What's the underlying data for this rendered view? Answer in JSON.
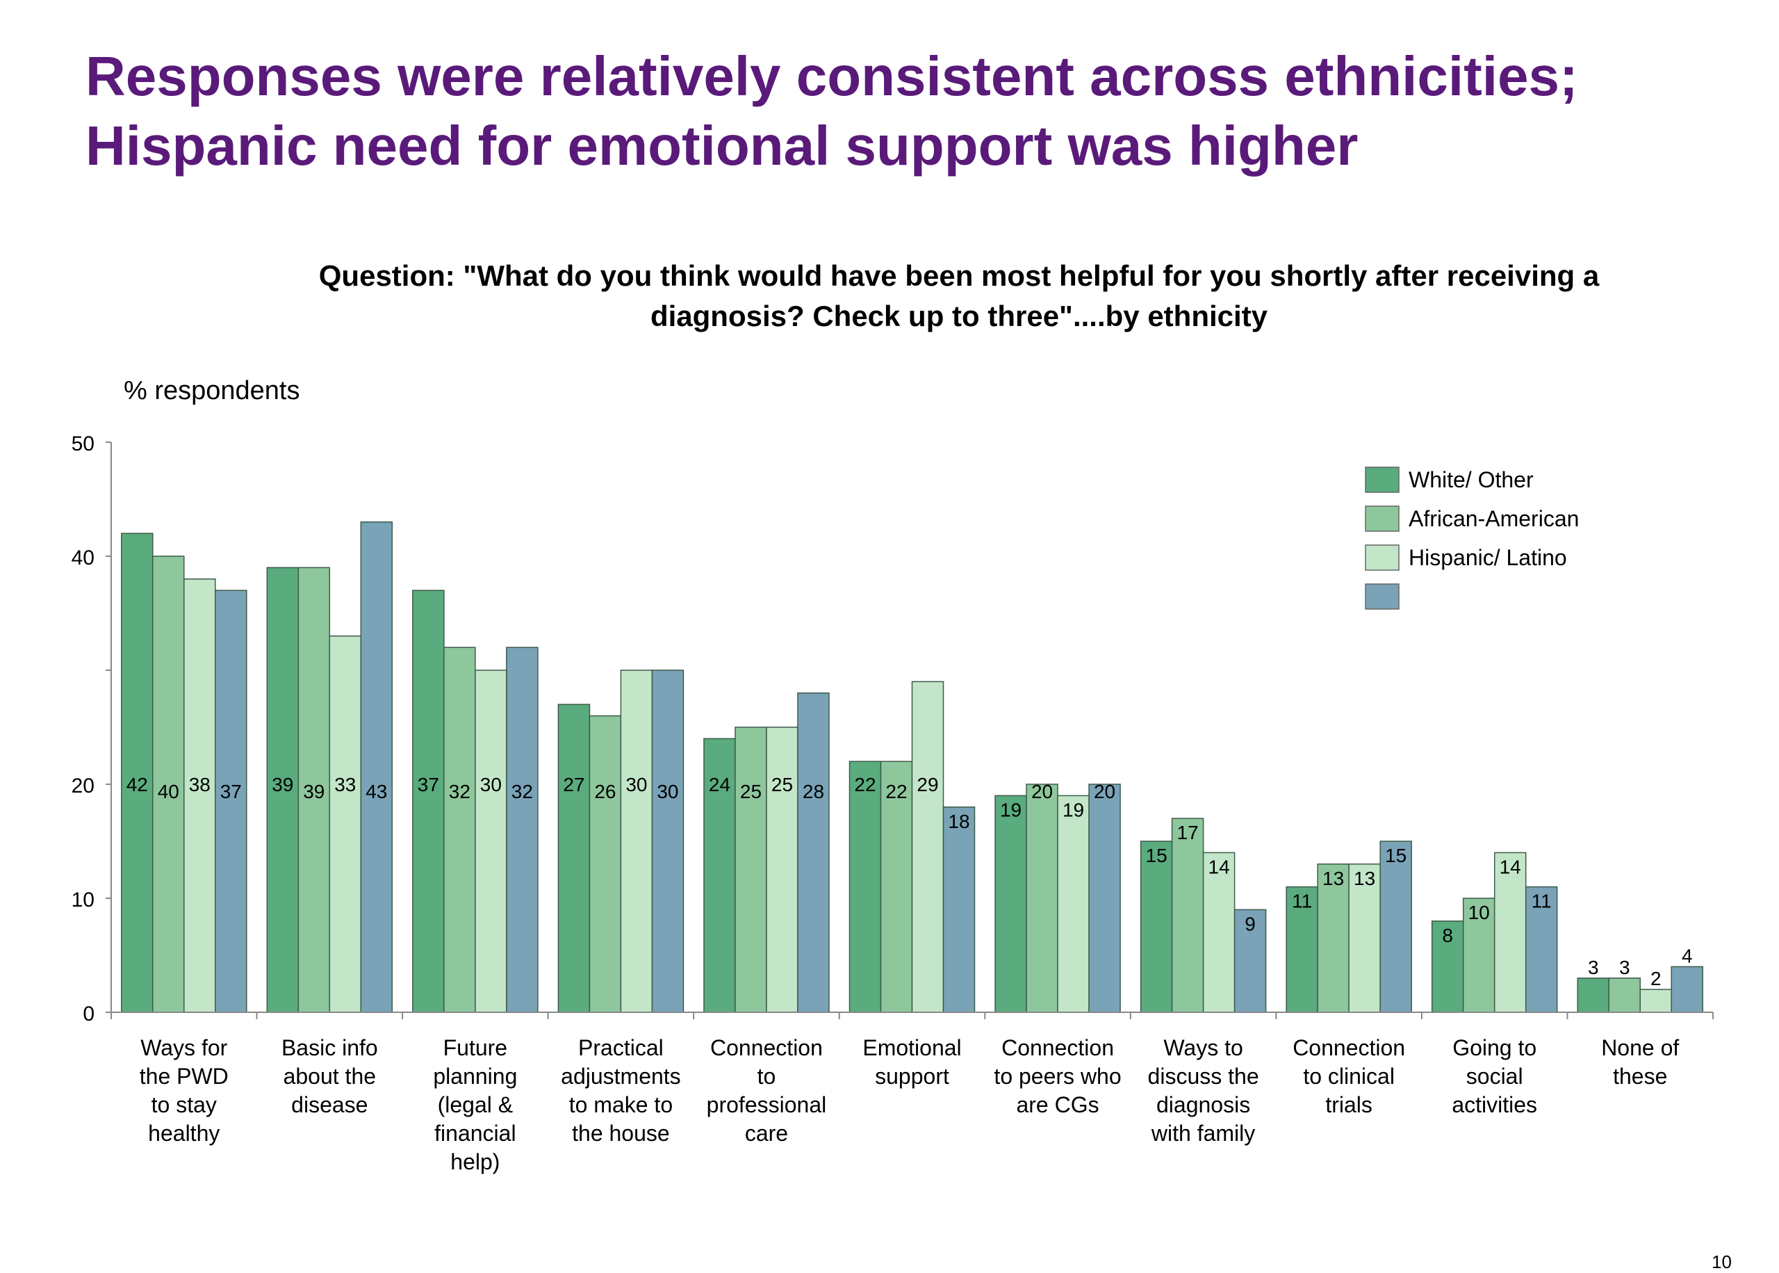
{
  "title_lines": [
    "Responses were relatively consistent across ethnicities;",
    "Hispanic need for emotional support was higher"
  ],
  "question_lines": [
    "Question: \"What do you think would have been most helpful for you shortly after receiving a",
    "diagnosis? Check up to three\"....by ethnicity"
  ],
  "page_number": "10",
  "colors": {
    "white_other": "#5aab7e",
    "african_american": "#8ec79c",
    "hispanic_latino": "#c3e6c9",
    "fourth": "#7aa3b8"
  },
  "chart_data": {
    "type": "bar",
    "ylabel": "% respondents",
    "ylim": [
      0,
      50
    ],
    "yticks": [
      "0",
      "10",
      "20",
      "40",
      "50"
    ],
    "legend_position": "top-right",
    "categories": [
      [
        "Ways for",
        "the PWD",
        "to stay",
        "healthy"
      ],
      [
        "Basic info",
        "about the",
        "disease"
      ],
      [
        "Future",
        "planning",
        "(legal &",
        "financial",
        "help)"
      ],
      [
        "Practical",
        "adjustments",
        "to make to",
        "the house"
      ],
      [
        "Connection",
        "to",
        "professional",
        "care"
      ],
      [
        "Emotional",
        "support"
      ],
      [
        "Connection",
        "to peers who",
        "are CGs"
      ],
      [
        "Ways to",
        "discuss the",
        "diagnosis",
        "with family"
      ],
      [
        "Connection",
        "to clinical",
        "trials"
      ],
      [
        "Going to",
        "social",
        "activities"
      ],
      [
        "None of",
        "these"
      ]
    ],
    "series": [
      {
        "name": "White/ Other",
        "values": [
          42,
          39,
          37,
          27,
          24,
          22,
          19,
          15,
          11,
          8,
          3
        ]
      },
      {
        "name": "African-American",
        "values": [
          40,
          39,
          32,
          26,
          25,
          22,
          20,
          17,
          13,
          10,
          3
        ]
      },
      {
        "name": "Hispanic/ Latino",
        "values": [
          38,
          33,
          30,
          30,
          25,
          29,
          19,
          14,
          13,
          14,
          2
        ]
      },
      {
        "name": "",
        "values": [
          37,
          43,
          32,
          30,
          28,
          18,
          20,
          9,
          15,
          11,
          4
        ]
      }
    ]
  }
}
